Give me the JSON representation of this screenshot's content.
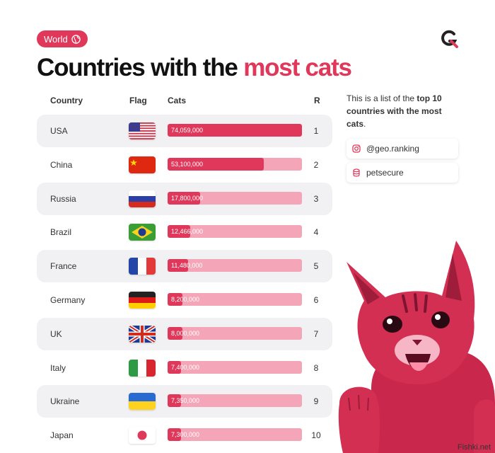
{
  "badge": {
    "label": "World",
    "icon": "globe-icon"
  },
  "logo": {
    "icon": "brand-logo-icon",
    "color": "#e0385a"
  },
  "title": {
    "main": "Countries with the ",
    "accent": "most cats"
  },
  "headers": {
    "country": "Country",
    "flag": "Flag",
    "cats": "Cats",
    "rank": "R"
  },
  "description": {
    "pre": "This is a list of the ",
    "bold": "top 10 countries with the most cats",
    "post": "."
  },
  "social": [
    {
      "icon": "instagram-icon",
      "label": "@geo.ranking"
    },
    {
      "icon": "database-icon",
      "label": "petsecure"
    }
  ],
  "colors": {
    "accent": "#e0385a",
    "track": "#f4a6b8",
    "shade": "#f1f1f3"
  },
  "watermark": "Fishki.net",
  "chart_data": {
    "type": "bar",
    "orientation": "horizontal",
    "categories": [
      "USA",
      "China",
      "Russia",
      "Brazil",
      "France",
      "Germany",
      "UK",
      "Italy",
      "Ukraine",
      "Japan"
    ],
    "flags": [
      "usa-flag",
      "china-flag",
      "russia-flag",
      "brazil-flag",
      "france-flag",
      "germany-flag",
      "uk-flag",
      "italy-flag",
      "ukraine-flag",
      "japan-flag"
    ],
    "values": [
      74059000,
      53100000,
      17800000,
      12466000,
      11480000,
      8200000,
      8000000,
      7400000,
      7350000,
      7300000
    ],
    "value_labels": [
      "74,059,000",
      "53,100,000",
      "17,800,000",
      "12,466,000",
      "11,480,000",
      "8,200,000",
      "8,000,000",
      "7,400,000",
      "7,350,000",
      "7,300,000"
    ],
    "ranks": [
      "1",
      "2",
      "3",
      "4",
      "5",
      "6",
      "7",
      "8",
      "9",
      "10"
    ],
    "xlim": [
      0,
      74059000
    ]
  }
}
